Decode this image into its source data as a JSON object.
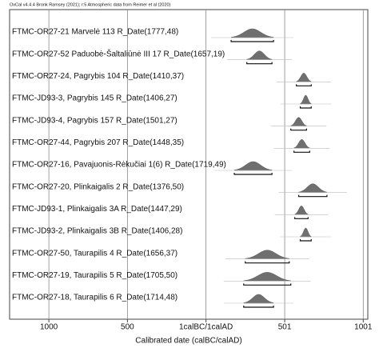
{
  "chart_data": {
    "type": "interval",
    "title": "OxCal v4.4.4 Bronk Ramsey (2021); r:5 Atmospheric data from Reimer et al (2020)",
    "xlabel": "Calibrated date (calBC/calAD)",
    "xlim": [
      -1250,
      1030
    ],
    "xticks": [
      {
        "value": -1000,
        "label": "1000"
      },
      {
        "value": -500,
        "label": "500"
      },
      {
        "value": 0,
        "label": "1calBC/1calAD"
      },
      501,
      1001
    ],
    "grid": true,
    "color": "#6f6f6f",
    "series": [
      {
        "name": "FTMC-OR27-21 Marvelė 113 R_Date(1777,48)",
        "range": [
          160,
          430
        ]
      },
      {
        "name": "FTMC-OR27-52 Paduobė-Šaltaliūnė III 17 R_Date(1657,19)",
        "range": [
          260,
          420
        ]
      },
      {
        "name": "FTMC-OR27-24, Pagrybis 104 R_Date(1410,37)",
        "range": [
          575,
          670
        ]
      },
      {
        "name": "FTMC-JD93-3, Pagrybis 145 R_Date(1406,27)",
        "range": [
          600,
          670
        ]
      },
      {
        "name": "FTMC-JD93-4, Pagrybis 157 R_Date(1501,27)",
        "range": [
          540,
          640
        ]
      },
      {
        "name": "FTMC-OR27-44, Pagrybis 207 R_Date(1448,35)",
        "range": [
          560,
          660
        ]
      },
      {
        "name": "FTMC-OR27-16, Pavajuonis-Rėkučiai 1(6) R_Date(1719,49)",
        "range": [
          180,
          420
        ]
      },
      {
        "name": "FTMC-OR27-20, Plinkaigalis 2 R_Date(1376,50)",
        "range": [
          590,
          770
        ]
      },
      {
        "name": "FTMC-JD93-1, Plinkaigalis 3A R_Date(1447,29)",
        "range": [
          565,
          650
        ]
      },
      {
        "name": "FTMC-JD93-2, Plinkaigalis 3B R_Date(1406,28)",
        "range": [
          600,
          670
        ]
      },
      {
        "name": "FTMC-OR27-50, Taurapilis 4 R_Date(1656,37)",
        "range": [
          250,
          530
        ]
      },
      {
        "name": "FTMC-OR27-19, Taurapilis 5 R_Date(1705,50)",
        "range": [
          240,
          540
        ]
      },
      {
        "name": "FTMC-OR27-18, Taurapilis 6 R_Date(1714,48)",
        "range": [
          240,
          430
        ]
      }
    ]
  }
}
